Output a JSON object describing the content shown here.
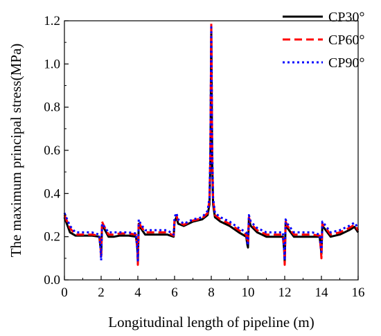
{
  "chart_data": {
    "type": "line",
    "title": "",
    "xlabel": "Longitudinal length of pipeline (m)",
    "ylabel": "The maximum principal stress(MPa)",
    "xlim": [
      0,
      16
    ],
    "ylim": [
      0.0,
      1.2
    ],
    "xticks": [
      0,
      2,
      4,
      6,
      8,
      10,
      12,
      14,
      16
    ],
    "xtick_labels": [
      "0",
      "2",
      "4",
      "6",
      "8",
      "10",
      "12",
      "14",
      "16"
    ],
    "yticks": [
      0.0,
      0.2,
      0.4,
      0.6,
      0.8,
      1.0,
      1.2
    ],
    "ytick_labels": [
      "0.0",
      "0.2",
      "0.4",
      "0.6",
      "0.8",
      "1.0",
      "1.2"
    ],
    "grid": false,
    "legend_position": "top-right",
    "series": [
      {
        "name": "CP30°",
        "color": "#000000",
        "style": "solid",
        "x": [
          0,
          0.3,
          0.6,
          1.0,
          1.5,
          1.9,
          1.97,
          2.0,
          2.05,
          2.15,
          2.4,
          2.7,
          3.0,
          3.5,
          3.9,
          3.97,
          4.0,
          4.05,
          4.15,
          4.4,
          4.8,
          5.2,
          5.6,
          5.95,
          6.0,
          6.1,
          6.2,
          6.5,
          7.0,
          7.5,
          7.8,
          7.9,
          7.95,
          8.0,
          8.05,
          8.1,
          8.2,
          8.5,
          9.0,
          9.5,
          9.9,
          9.97,
          10.0,
          10.05,
          10.15,
          10.5,
          11.0,
          11.5,
          11.9,
          11.97,
          12.0,
          12.05,
          12.15,
          12.5,
          13.0,
          13.5,
          13.9,
          13.97,
          14.0,
          14.05,
          14.15,
          14.5,
          15.0,
          15.5,
          15.8,
          16.0
        ],
        "y": [
          0.29,
          0.22,
          0.205,
          0.205,
          0.205,
          0.2,
          0.15,
          0.11,
          0.25,
          0.24,
          0.2,
          0.2,
          0.205,
          0.205,
          0.2,
          0.15,
          0.08,
          0.26,
          0.24,
          0.21,
          0.21,
          0.21,
          0.21,
          0.2,
          0.27,
          0.29,
          0.26,
          0.25,
          0.27,
          0.28,
          0.3,
          0.35,
          0.55,
          1.17,
          0.55,
          0.35,
          0.29,
          0.27,
          0.25,
          0.22,
          0.2,
          0.16,
          0.15,
          0.28,
          0.25,
          0.22,
          0.2,
          0.2,
          0.2,
          0.14,
          0.08,
          0.26,
          0.24,
          0.2,
          0.2,
          0.2,
          0.2,
          0.15,
          0.12,
          0.25,
          0.24,
          0.2,
          0.21,
          0.23,
          0.245,
          0.22
        ]
      },
      {
        "name": "CP60°",
        "color": "#ff0000",
        "style": "dashed",
        "x": [
          0,
          0.3,
          0.6,
          1.0,
          1.5,
          1.9,
          1.97,
          2.0,
          2.05,
          2.15,
          2.4,
          2.7,
          3.0,
          3.5,
          3.9,
          3.97,
          4.0,
          4.05,
          4.15,
          4.4,
          4.8,
          5.2,
          5.6,
          5.95,
          6.0,
          6.1,
          6.2,
          6.5,
          7.0,
          7.5,
          7.8,
          7.9,
          7.95,
          8.0,
          8.05,
          8.1,
          8.2,
          8.5,
          9.0,
          9.5,
          9.9,
          9.97,
          10.0,
          10.05,
          10.15,
          10.5,
          11.0,
          11.5,
          11.9,
          11.97,
          12.0,
          12.05,
          12.15,
          12.5,
          13.0,
          13.5,
          13.9,
          13.97,
          14.0,
          14.05,
          14.15,
          14.5,
          15.0,
          15.5,
          15.8,
          16.0
        ],
        "y": [
          0.3,
          0.24,
          0.21,
          0.21,
          0.21,
          0.205,
          0.16,
          0.1,
          0.27,
          0.25,
          0.21,
          0.21,
          0.215,
          0.215,
          0.21,
          0.16,
          0.07,
          0.27,
          0.25,
          0.22,
          0.22,
          0.22,
          0.22,
          0.205,
          0.28,
          0.3,
          0.27,
          0.255,
          0.275,
          0.285,
          0.31,
          0.37,
          0.6,
          1.19,
          0.6,
          0.37,
          0.3,
          0.28,
          0.26,
          0.23,
          0.21,
          0.17,
          0.17,
          0.29,
          0.26,
          0.23,
          0.21,
          0.21,
          0.21,
          0.15,
          0.07,
          0.27,
          0.25,
          0.21,
          0.21,
          0.21,
          0.205,
          0.14,
          0.1,
          0.26,
          0.25,
          0.21,
          0.22,
          0.24,
          0.255,
          0.23
        ]
      },
      {
        "name": "CP90°",
        "color": "#0000ff",
        "style": "dotted",
        "x": [
          0,
          0.3,
          0.6,
          1.0,
          1.5,
          1.9,
          1.97,
          2.0,
          2.05,
          2.15,
          2.4,
          2.7,
          3.0,
          3.5,
          3.9,
          3.97,
          4.0,
          4.05,
          4.15,
          4.4,
          4.8,
          5.2,
          5.6,
          5.95,
          6.0,
          6.1,
          6.2,
          6.5,
          7.0,
          7.5,
          7.8,
          7.9,
          7.95,
          8.0,
          8.05,
          8.1,
          8.2,
          8.5,
          9.0,
          9.5,
          9.9,
          9.97,
          10.0,
          10.05,
          10.15,
          10.5,
          11.0,
          11.5,
          11.9,
          11.97,
          12.0,
          12.05,
          12.15,
          12.5,
          13.0,
          13.5,
          13.9,
          13.97,
          14.0,
          14.05,
          14.15,
          14.5,
          15.0,
          15.5,
          15.8,
          16.0
        ],
        "y": [
          0.31,
          0.25,
          0.22,
          0.22,
          0.22,
          0.21,
          0.14,
          0.09,
          0.26,
          0.25,
          0.22,
          0.22,
          0.22,
          0.22,
          0.215,
          0.14,
          0.09,
          0.28,
          0.26,
          0.23,
          0.23,
          0.23,
          0.23,
          0.21,
          0.29,
          0.31,
          0.28,
          0.26,
          0.28,
          0.29,
          0.32,
          0.38,
          0.62,
          1.18,
          0.62,
          0.38,
          0.31,
          0.29,
          0.27,
          0.24,
          0.22,
          0.17,
          0.16,
          0.3,
          0.27,
          0.24,
          0.22,
          0.22,
          0.22,
          0.14,
          0.09,
          0.28,
          0.26,
          0.22,
          0.22,
          0.22,
          0.21,
          0.15,
          0.13,
          0.27,
          0.26,
          0.22,
          0.23,
          0.25,
          0.265,
          0.24
        ]
      }
    ]
  }
}
